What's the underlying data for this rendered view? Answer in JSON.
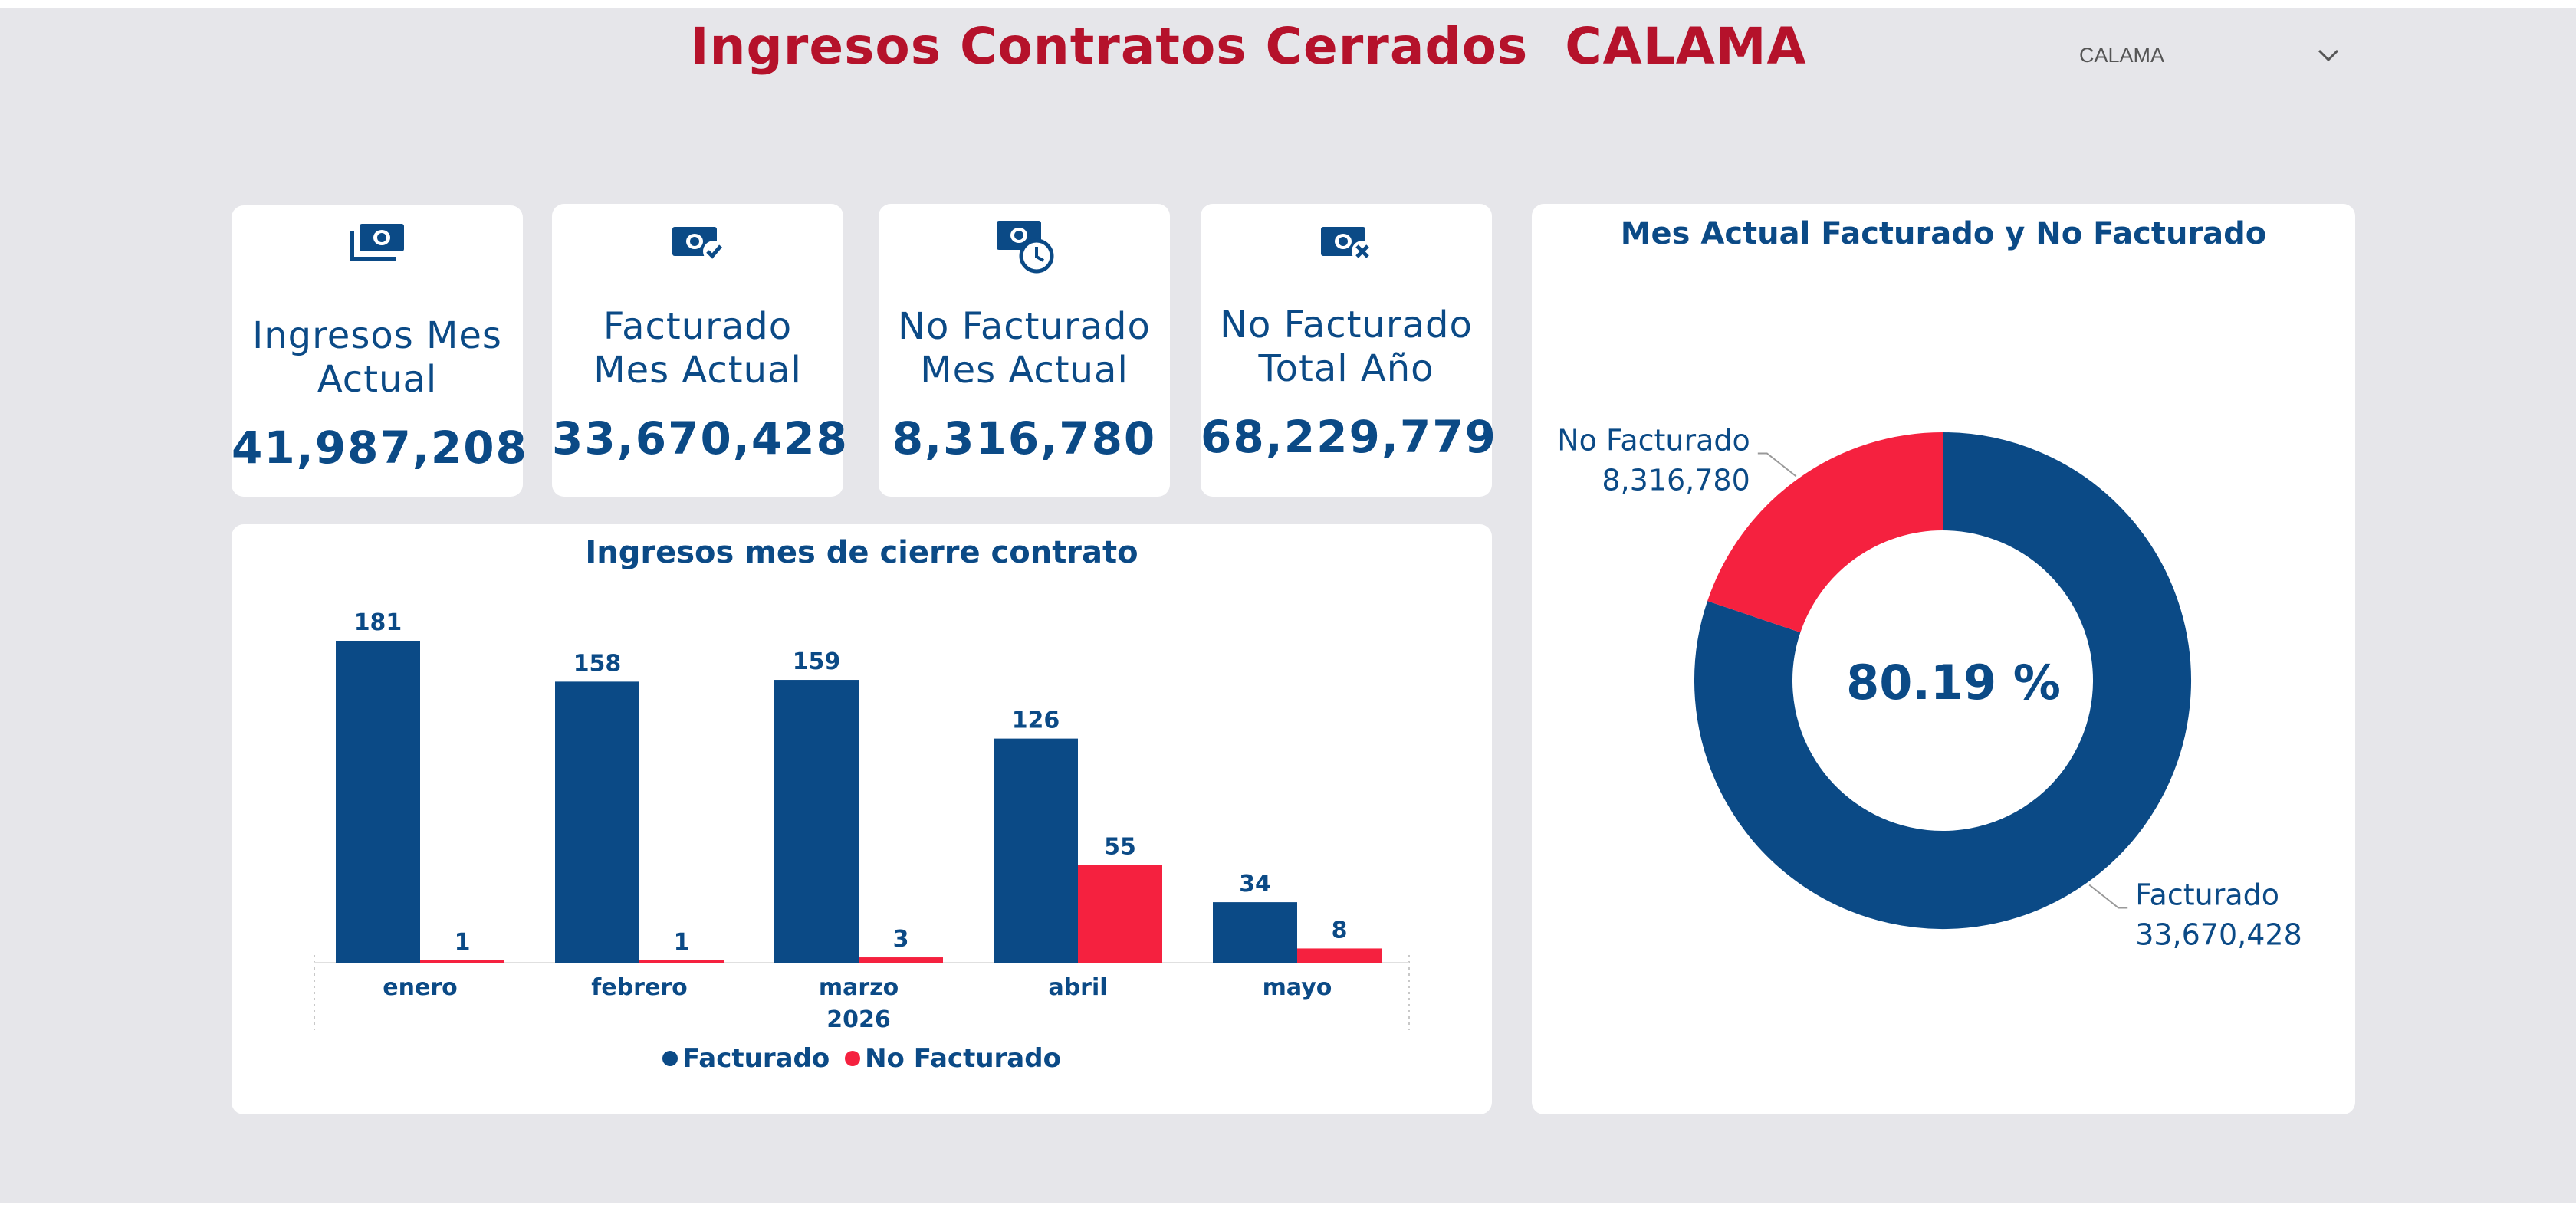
{
  "title": "Ingresos Contratos Cerrados  CALAMA",
  "slicer": {
    "selected": "CALAMA",
    "icon": "chevron-down-icon"
  },
  "colors": {
    "facturado": "#0b4a86",
    "no_facturado": "#f5213f",
    "title": "#b5122b"
  },
  "kpis": [
    {
      "label": "Ingresos Mes Actual",
      "value": "41,987,208",
      "icon": "money-stack-icon"
    },
    {
      "label": "Facturado Mes Actual",
      "value": "33,670,428",
      "icon": "money-check-icon"
    },
    {
      "label": "No Facturado Mes Actual",
      "value": "8,316,780",
      "icon": "money-clock-icon"
    },
    {
      "label": "No Facturado Total Año",
      "value": "68,229,779",
      "icon": "money-x-icon"
    }
  ],
  "chart_data": [
    {
      "type": "bar",
      "title": "Ingresos mes de cierre contrato",
      "categories": [
        "enero",
        "febrero",
        "marzo",
        "abril",
        "mayo"
      ],
      "x_group_label": "2026",
      "series": [
        {
          "name": "Facturado",
          "values": [
            181,
            158,
            159,
            126,
            34
          ],
          "color": "#0b4a86"
        },
        {
          "name": "No Facturado",
          "values": [
            1,
            1,
            3,
            55,
            8
          ],
          "color": "#f5213f"
        }
      ],
      "legend_position": "bottom"
    },
    {
      "type": "pie",
      "variant": "donut",
      "title": "Mes Actual Facturado y No Facturado",
      "center_label": "80.19 %",
      "slices": [
        {
          "name": "Facturado",
          "value": 33670428,
          "label": "33,670,428",
          "color": "#0b4a86"
        },
        {
          "name": "No Facturado",
          "value": 8316780,
          "label": "8,316,780",
          "color": "#f5213f"
        }
      ]
    }
  ]
}
